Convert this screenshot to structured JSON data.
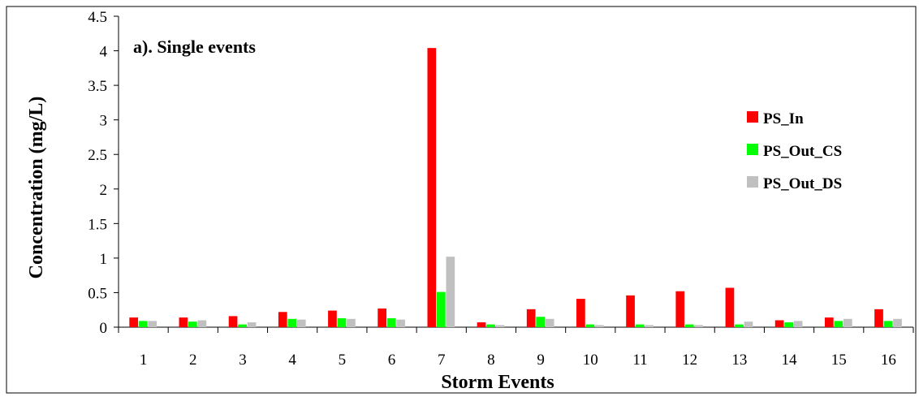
{
  "chart_data": {
    "type": "bar",
    "title": "a). Single events",
    "xlabel": "Storm Events",
    "ylabel": "Concentration (mg/L)",
    "ylim": [
      0,
      4.5
    ],
    "yticks": [
      "0",
      "0.5",
      "1",
      "1.5",
      "2",
      "2.5",
      "3",
      "3.5",
      "4",
      "4.5"
    ],
    "categories": [
      "1",
      "2",
      "3",
      "4",
      "5",
      "6",
      "7",
      "8",
      "9",
      "10",
      "11",
      "12",
      "13",
      "14",
      "15",
      "16"
    ],
    "grid": false,
    "legend_position": "right",
    "series": [
      {
        "name": "PS_In",
        "color": "#ff0000",
        "values": [
          0.14,
          0.14,
          0.16,
          0.22,
          0.24,
          0.27,
          4.04,
          0.07,
          0.26,
          0.41,
          0.46,
          0.52,
          0.57,
          0.1,
          0.14,
          0.26
        ]
      },
      {
        "name": "PS_Out_CS",
        "color": "#00ff00",
        "values": [
          0.09,
          0.08,
          0.04,
          0.12,
          0.13,
          0.13,
          0.51,
          0.04,
          0.15,
          0.04,
          0.04,
          0.04,
          0.04,
          0.07,
          0.09,
          0.09
        ]
      },
      {
        "name": "PS_Out_DS",
        "color": "#c0c0c0",
        "values": [
          0.09,
          0.1,
          0.07,
          0.11,
          0.12,
          0.11,
          1.02,
          0.03,
          0.12,
          0.03,
          0.03,
          0.03,
          0.08,
          0.09,
          0.12,
          0.12
        ]
      }
    ]
  }
}
